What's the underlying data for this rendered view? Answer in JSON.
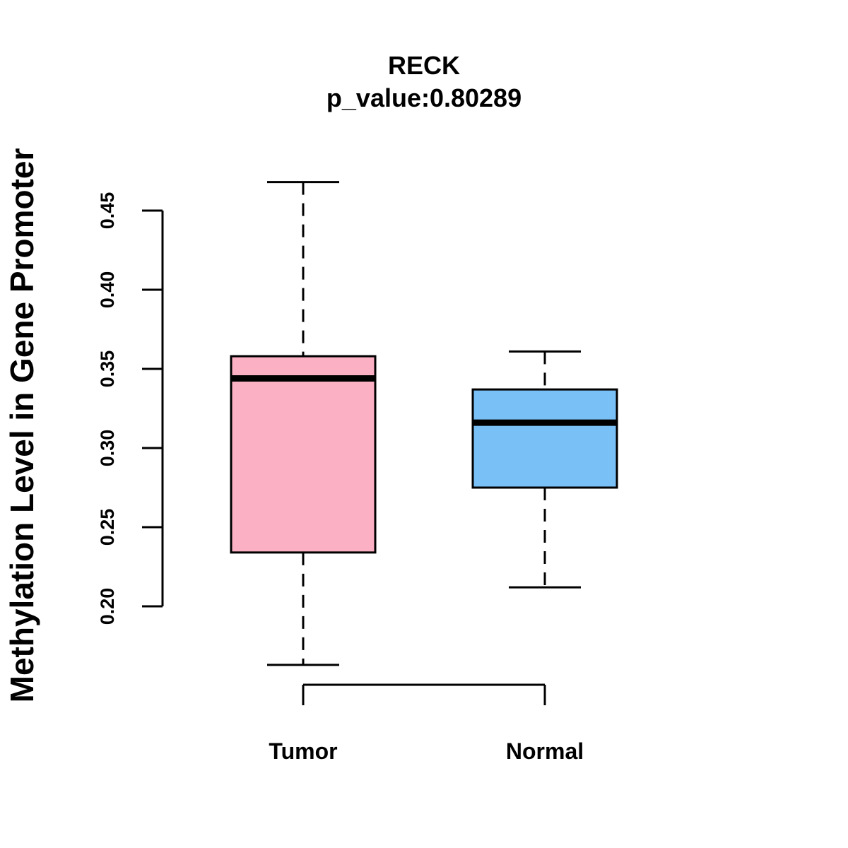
{
  "chart_data": {
    "type": "boxplot",
    "title": "RECK",
    "subtitle": "p_value:0.80289",
    "xlabel": "",
    "ylabel": "Methylation Level in Gene Promoter",
    "ylim": [
      0.2,
      0.45
    ],
    "yticks": [
      0.2,
      0.25,
      0.3,
      0.35,
      0.4,
      0.45
    ],
    "ytick_labels": [
      "0.20",
      "0.25",
      "0.30",
      "0.35",
      "0.40",
      "0.45"
    ],
    "categories": [
      "Tumor",
      "Normal"
    ],
    "series": [
      {
        "name": "Tumor",
        "whisker_low": 0.163,
        "q1": 0.234,
        "median": 0.344,
        "q3": 0.358,
        "whisker_high": 0.468,
        "color": "#fcb0c3"
      },
      {
        "name": "Normal",
        "whisker_low": 0.212,
        "q1": 0.275,
        "median": 0.316,
        "q3": 0.337,
        "whisker_high": 0.361,
        "color": "#79c0f7"
      }
    ],
    "grid": false,
    "legend": "none"
  }
}
